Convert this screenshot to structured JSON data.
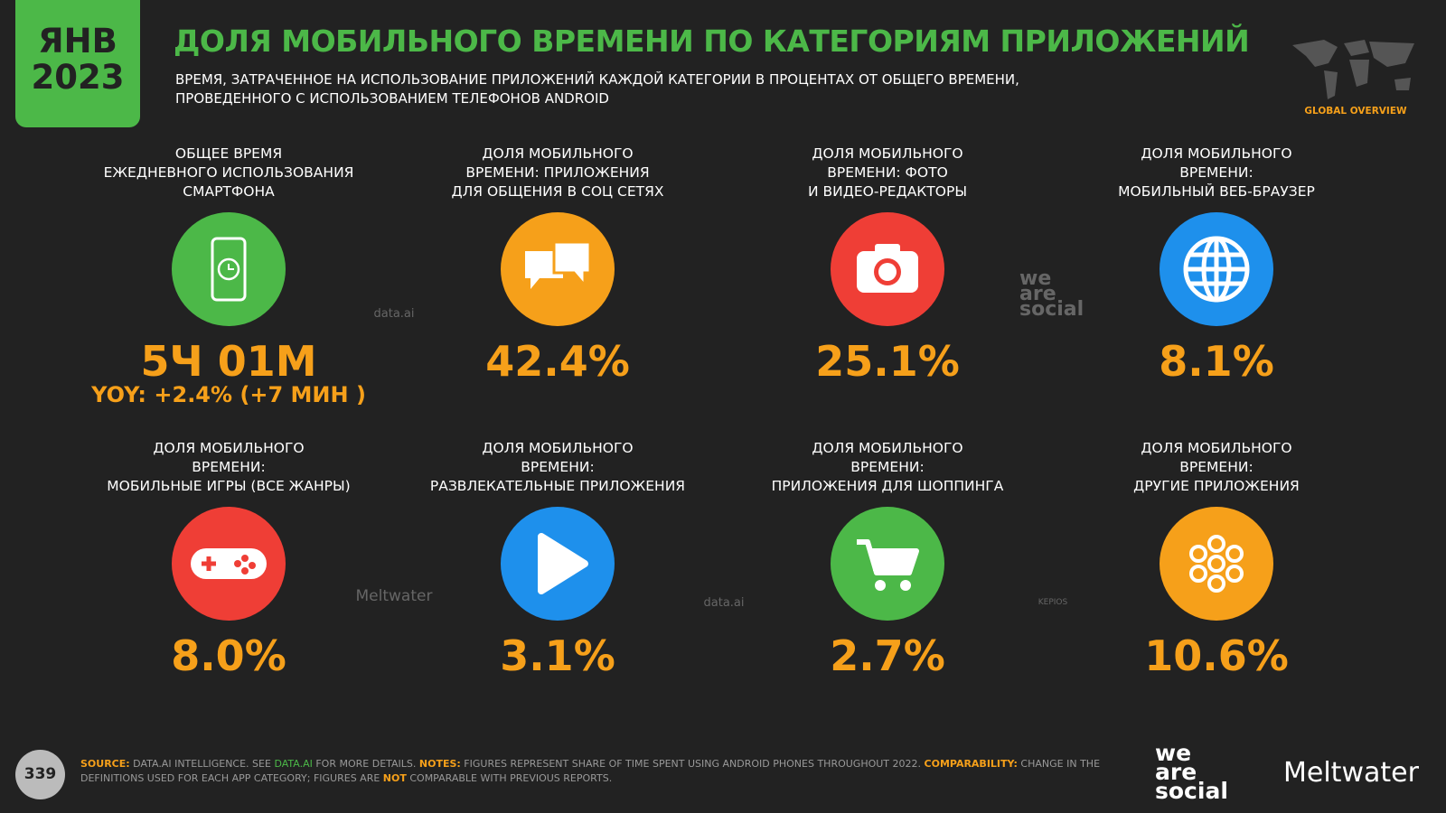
{
  "header": {
    "badge": [
      "ЯНВ",
      "2023"
    ],
    "title": "ДОЛЯ МОБИЛЬНОГО ВРЕМЕНИ ПО КАТЕГОРИЯМ ПРИЛОЖЕНИЙ",
    "subtitle": [
      "ВРЕМЯ, ЗАТРАЧЕННОЕ НА ИСПОЛЬЗОВАНИЕ ПРИЛОЖЕНИЙ КАЖДОЙ КАТЕГОРИИ В ПРОЦЕНТАХ ОТ ОБЩЕГО ВРЕМЕНИ,",
      "ПРОВЕДЕННОГО С ИСПОЛЬЗОВАНИЕМ ТЕЛЕФОНОВ ANDROID"
    ],
    "section": "GLOBAL OVERVIEW"
  },
  "tiles": [
    {
      "label": [
        "ОБЩЕЕ ВРЕМЯ",
        "ЕЖЕДНЕВНОГО ИСПОЛЬЗОВАНИЯ",
        "СМАРТФОНА"
      ],
      "value": "5Ч 01М",
      "note": "YOY: +2.4% (+7 МИН )"
    },
    {
      "label": [
        "ДОЛЯ МОБИЛЬНОГО",
        "ВРЕМЕНИ: ПРИЛОЖЕНИЯ",
        "ДЛЯ ОБЩЕНИЯ В СОЦ СЕТЯХ"
      ],
      "value": "42.4%"
    },
    {
      "label": [
        "ДОЛЯ МОБИЛЬНОГО",
        "ВРЕМЕНИ: ФОТО",
        "И ВИДЕО-РЕДАКТОРЫ"
      ],
      "value": "25.1%"
    },
    {
      "label": [
        "ДОЛЯ МОБИЛЬНОГО",
        "ВРЕМЕНИ:",
        "МОБИЛЬНЫЙ ВЕБ-БРАУЗЕР"
      ],
      "value": "8.1%"
    },
    {
      "label": [
        "ДОЛЯ МОБИЛЬНОГО",
        "ВРЕМЕНИ:",
        "МОБИЛЬНЫЕ ИГРЫ (ВСЕ ЖАНРЫ)"
      ],
      "value": "8.0%"
    },
    {
      "label": [
        "ДОЛЯ МОБИЛЬНОГО",
        "ВРЕМЕНИ:",
        "РАЗВЛЕКАТЕЛЬНЫЕ ПРИЛОЖЕНИЯ"
      ],
      "value": "3.1%"
    },
    {
      "label": [
        "ДОЛЯ МОБИЛЬНОГО",
        "ВРЕМЕНИ:",
        "ПРИЛОЖЕНИЯ ДЛЯ ШОППИНГА"
      ],
      "value": "2.7%"
    },
    {
      "label": [
        "ДОЛЯ МОБИЛЬНОГО",
        "ВРЕМЕНИ:",
        "ДРУГИЕ ПРИЛОЖЕНИЯ"
      ],
      "value": "10.6%"
    }
  ],
  "logos": [
    "data.ai",
    "we are social",
    "Meltwater",
    "data.ai",
    "KEPIOS"
  ],
  "footer": {
    "page": "339",
    "source": [
      {
        "text": "SOURCE:",
        "style": "key"
      },
      {
        "text": " DATA.AI INTELLIGENCE. SEE ",
        "style": "plain"
      },
      {
        "text": "DATA.AI",
        "style": "link"
      },
      {
        "text": " FOR MORE DETAILS. ",
        "style": "plain"
      },
      {
        "text": "NOTES:",
        "style": "key"
      },
      {
        "text": " FIGURES REPRESENT SHARE OF TIME SPENT USING ANDROID PHONES THROUGHOUT 2022. ",
        "style": "plain"
      },
      {
        "text": "COMPARABILITY:",
        "style": "key"
      },
      {
        "text": " CHANGE IN THE DEFINITIONS USED FOR EACH APP CATEGORY; FIGURES ARE ",
        "style": "plain"
      },
      {
        "text": "NOT",
        "style": "key"
      },
      {
        "text": " COMPARABLE WITH PREVIOUS REPORTS.",
        "style": "plain"
      }
    ],
    "brands": [
      "we are social",
      "Meltwater"
    ]
  }
}
